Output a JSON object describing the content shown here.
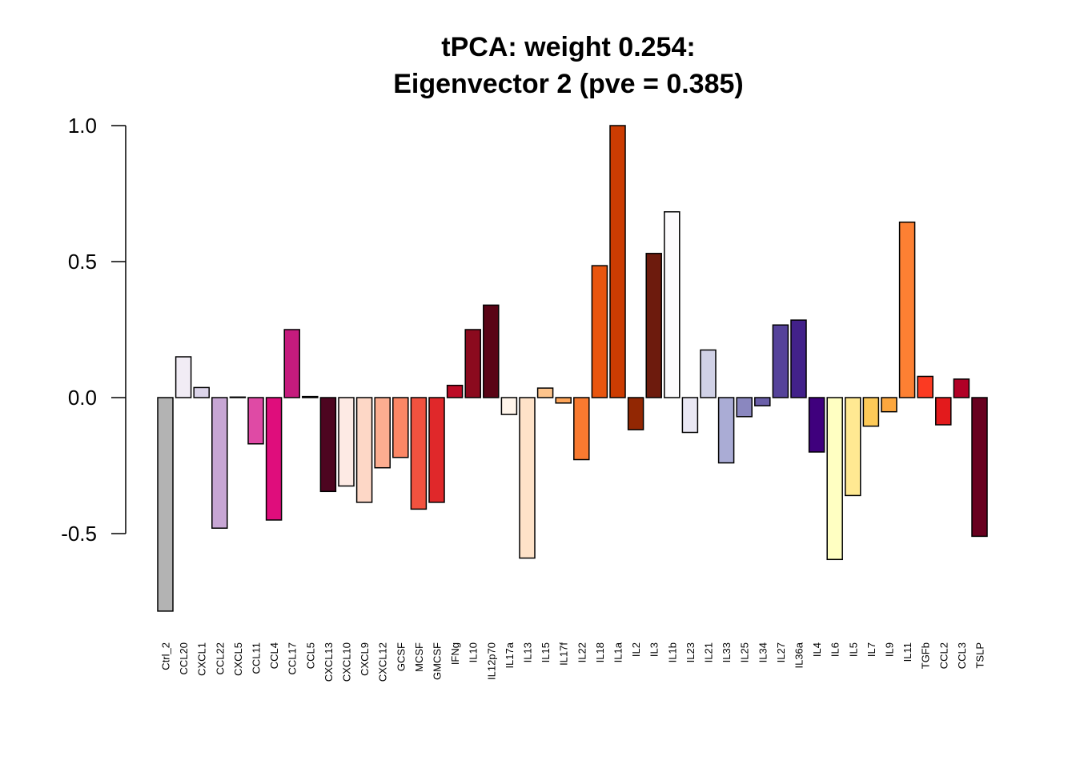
{
  "chart_data": {
    "type": "bar",
    "title": "tPCA: weight 0.254:",
    "subtitle": "Eigenvector 2 (pve = 0.385)",
    "xlabel": "",
    "ylabel": "",
    "ylim": [
      -0.8,
      1.0
    ],
    "yticks": [
      -0.5,
      0.0,
      0.5,
      1.0
    ],
    "ytick_labels": [
      "-0.5",
      "0.0",
      "0.5",
      "1.0"
    ],
    "grid": false,
    "legend": "none",
    "categories": [
      "Ctrl_2",
      "CCL20",
      "CXCL1",
      "CCL22",
      "CXCL5",
      "CCL11",
      "CCL4",
      "CCL17",
      "CCL5",
      "CXCL13",
      "CXCL10",
      "CXCL9",
      "CXCL12",
      "GCSF",
      "MCSF",
      "GMCSF",
      "IFNg",
      "IL10",
      "IL12p70",
      "IL17a",
      "IL13",
      "IL15",
      "IL17f",
      "IL22",
      "IL18",
      "IL1a",
      "IL2",
      "IL3",
      "IL1b",
      "IL23",
      "IL21",
      "IL33",
      "IL25",
      "IL34",
      "IL27",
      "IL36a",
      "IL4",
      "IL6",
      "IL5",
      "IL7",
      "IL9",
      "IL11",
      "TGFb",
      "CCL2",
      "CCL3",
      "TSLP"
    ],
    "values": [
      -0.785,
      0.15,
      0.037,
      -0.48,
      0.002,
      -0.17,
      -0.45,
      0.25,
      0.004,
      -0.345,
      -0.325,
      -0.385,
      -0.258,
      -0.22,
      -0.41,
      -0.385,
      0.045,
      0.25,
      0.34,
      -0.062,
      -0.59,
      0.035,
      -0.02,
      -0.228,
      0.485,
      1.0,
      -0.118,
      0.53,
      0.683,
      -0.128,
      0.175,
      -0.24,
      -0.07,
      -0.03,
      0.267,
      0.285,
      -0.2,
      -0.595,
      -0.36,
      -0.105,
      -0.052,
      0.645,
      0.078,
      -0.1,
      0.068,
      -0.51
    ],
    "colors": [
      "#b3b3b3",
      "#f1ecf5",
      "#dcd5ea",
      "#c7a6d4",
      "#e7e1ef",
      "#df4aa5",
      "#df0d7c",
      "#c51b7d",
      "#fde0ef",
      "#4d0520",
      "#fdeae4",
      "#fdd7c6",
      "#fcad90",
      "#fb8766",
      "#f2523f",
      "#e0282a",
      "#bd0b26",
      "#8b0a1e",
      "#5a0416",
      "#fff5eb",
      "#fee2c8",
      "#fdc48c",
      "#fda55a",
      "#f87a30",
      "#e8550f",
      "#cc3c02",
      "#922703",
      "#6d1b0d",
      "#fcfbfd",
      "#eae8f4",
      "#d0d1e6",
      "#aaacd5",
      "#8a87bf",
      "#6a5fa9",
      "#55429a",
      "#42218a",
      "#3f007d",
      "#ffffc2",
      "#ffe992",
      "#fdca58",
      "#fca73e",
      "#fd8033",
      "#fb3a22",
      "#e31a1c",
      "#b10026",
      "#68001f"
    ]
  }
}
